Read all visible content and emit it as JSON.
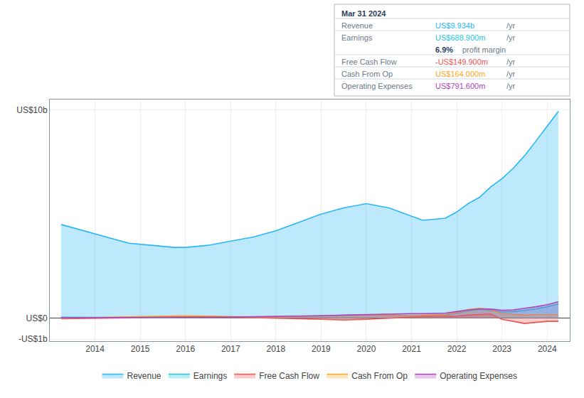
{
  "chart_data": {
    "type": "area",
    "x": [
      2013.25,
      2013.75,
      2014.25,
      2014.75,
      2015.25,
      2015.75,
      2016.0,
      2016.5,
      2017.0,
      2017.5,
      2018.0,
      2018.5,
      2019.0,
      2019.5,
      2020.0,
      2020.5,
      2021.0,
      2021.25,
      2021.75,
      2022.0,
      2022.25,
      2022.5,
      2022.75,
      2023.0,
      2023.25,
      2023.5,
      2023.75,
      2024.0,
      2024.25
    ],
    "series": [
      {
        "name": "Revenue",
        "color": "#29b6f6",
        "values": [
          4.5,
          4.2,
          3.9,
          3.6,
          3.5,
          3.4,
          3.4,
          3.5,
          3.7,
          3.9,
          4.2,
          4.6,
          5.0,
          5.3,
          5.5,
          5.3,
          4.9,
          4.7,
          4.8,
          5.1,
          5.5,
          5.8,
          6.3,
          6.7,
          7.2,
          7.8,
          8.5,
          9.2,
          9.934
        ]
      },
      {
        "name": "Earnings",
        "color": "#26c6da",
        "values": [
          0.05,
          0.04,
          0.03,
          0.02,
          0.02,
          0.03,
          0.03,
          0.04,
          0.05,
          0.06,
          0.07,
          0.09,
          0.12,
          0.14,
          0.16,
          0.13,
          0.1,
          0.1,
          0.15,
          0.25,
          0.35,
          0.42,
          0.38,
          0.3,
          0.32,
          0.38,
          0.45,
          0.55,
          0.689
        ]
      },
      {
        "name": "Free Cash Flow",
        "color": "#ef5350",
        "values": [
          -0.02,
          -0.01,
          0.0,
          0.02,
          0.05,
          0.08,
          0.1,
          0.08,
          0.06,
          0.04,
          0.02,
          -0.02,
          -0.05,
          -0.08,
          -0.05,
          0.0,
          0.05,
          0.08,
          0.08,
          0.1,
          0.15,
          0.18,
          0.2,
          -0.05,
          -0.15,
          -0.25,
          -0.2,
          -0.15,
          -0.15
        ]
      },
      {
        "name": "Cash From Op",
        "color": "#ffa726",
        "values": [
          0.0,
          0.02,
          0.04,
          0.06,
          0.1,
          0.12,
          0.12,
          0.1,
          0.08,
          0.06,
          0.08,
          0.1,
          0.12,
          0.14,
          0.15,
          0.14,
          0.12,
          0.14,
          0.18,
          0.28,
          0.42,
          0.48,
          0.42,
          0.22,
          0.18,
          0.15,
          0.16,
          0.17,
          0.164
        ]
      },
      {
        "name": "Operating Expenses",
        "color": "#ab47bc",
        "values": [
          0.02,
          0.03,
          0.04,
          0.05,
          0.06,
          0.07,
          0.07,
          0.06,
          0.06,
          0.07,
          0.08,
          0.1,
          0.12,
          0.15,
          0.18,
          0.2,
          0.22,
          0.22,
          0.25,
          0.32,
          0.4,
          0.45,
          0.44,
          0.38,
          0.4,
          0.48,
          0.55,
          0.65,
          0.792
        ]
      }
    ],
    "xlim": [
      2013.0,
      2024.5
    ],
    "xticks": [
      2014,
      2015,
      2016,
      2017,
      2018,
      2019,
      2020,
      2021,
      2022,
      2023,
      2024
    ],
    "ylim": [
      -1.1,
      10.5
    ],
    "yticks": [
      {
        "value": -1,
        "label": "-US$1b"
      },
      {
        "value": 0,
        "label": "US$0"
      },
      {
        "value": 10,
        "label": "US$10b"
      }
    ],
    "grid": true,
    "legend": "bottom",
    "annotations": {
      "title": "Mar 31 2024",
      "rows": [
        {
          "label": "Revenue",
          "text": "US$9.934b",
          "unit": "/yr",
          "color": "#29b6f6"
        },
        {
          "label": "Earnings",
          "text": "US$688.900m",
          "unit": "/yr",
          "color": "#26c6da"
        },
        {
          "text": "6.9%",
          "note": "profit margin"
        },
        {
          "label": "Free Cash Flow",
          "text": "-US$149.900m",
          "unit": "/yr",
          "color": "#ef5350"
        },
        {
          "label": "Cash From Op",
          "text": "US$164.000m",
          "unit": "/yr",
          "color": "#ffa726"
        },
        {
          "label": "Operating Expenses",
          "text": "US$791.600m",
          "unit": "/yr",
          "color": "#ab47bc"
        }
      ]
    }
  }
}
